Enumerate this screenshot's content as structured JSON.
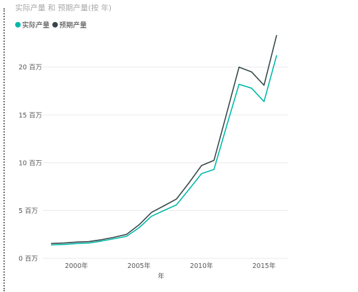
{
  "chart_data": {
    "type": "line",
    "title": "实际产量 和 预期产量(按 年)",
    "xlabel": "年",
    "ylabel": "",
    "x": [
      1998,
      1999,
      2000,
      2001,
      2002,
      2003,
      2004,
      2005,
      2006,
      2007,
      2008,
      2009,
      2010,
      2011,
      2012,
      2013,
      2014,
      2015,
      2016
    ],
    "x_ticks": [
      {
        "value": 2000,
        "label": "2000年"
      },
      {
        "value": 2005,
        "label": "2005年"
      },
      {
        "value": 2010,
        "label": "2010年"
      },
      {
        "value": 2015,
        "label": "2015年"
      }
    ],
    "xlim": [
      1997.3,
      2016.9
    ],
    "ylim": [
      0,
      24
    ],
    "y_ticks": [
      {
        "value": 0,
        "label": "0 百万"
      },
      {
        "value": 5,
        "label": "5 百万"
      },
      {
        "value": 10,
        "label": "10 百万"
      },
      {
        "value": 15,
        "label": "15 百万"
      },
      {
        "value": 20,
        "label": "20 百万"
      }
    ],
    "grid": true,
    "legend_position": "top-left",
    "series": [
      {
        "name": "实际产量",
        "color": "#01B8AA",
        "values": [
          1.4,
          1.45,
          1.55,
          1.6,
          1.8,
          2.05,
          2.3,
          3.2,
          4.4,
          5.0,
          5.6,
          7.2,
          8.85,
          9.3,
          13.8,
          18.2,
          17.8,
          16.4,
          21.2
        ]
      },
      {
        "name": "预期产量",
        "color": "#374649",
        "values": [
          1.55,
          1.6,
          1.7,
          1.75,
          1.95,
          2.2,
          2.5,
          3.5,
          4.8,
          5.5,
          6.2,
          7.9,
          9.7,
          10.25,
          15.1,
          20.0,
          19.5,
          18.1,
          23.3
        ]
      }
    ]
  },
  "ui": {
    "title_color": "#A8A8A8",
    "gridline_color": "#EAEAEA",
    "label_color": "#555555"
  }
}
